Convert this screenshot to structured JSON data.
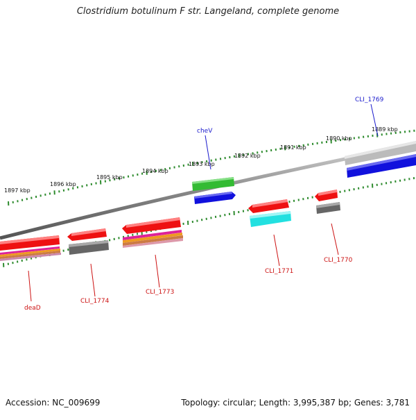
{
  "title": "Clostridium botulinum F str. Langeland, complete genome",
  "footer": {
    "accession": "Accession: NC_009699",
    "summary": "Topology: circular; Length: 3,995,387 bp; Genes: 3,781"
  },
  "scale_labels": [
    "1897 kbp",
    "1896 kbp",
    "1895 kbp",
    "1894 kbp",
    "1893 kbp",
    "1892 kbp",
    "1891 kbp",
    "1890 kbp",
    "1889 kbp"
  ],
  "gene_labels": {
    "cheV": "cheV",
    "CLI_1769": "CLI_1769",
    "CLI_1770": "CLI_1770",
    "CLI_1771": "CLI_1771",
    "CLI_1773": "CLI_1773",
    "CLI_1774": "CLI_1774",
    "deaD": "deaD"
  },
  "colors": {
    "backbone": "#8a8a8a",
    "scale_ticks": "#2e8b2e",
    "forward_label": "#1a1acc",
    "reverse_label": "#cc1111",
    "gene_red": "#ee1111",
    "gene_green": "#33bb33",
    "gene_blue": "#1111dd",
    "gene_cyan": "#22e0e0",
    "gene_gray": "#777777",
    "gene_magenta": "#dd2299",
    "gene_orange": "#ee9922"
  }
}
